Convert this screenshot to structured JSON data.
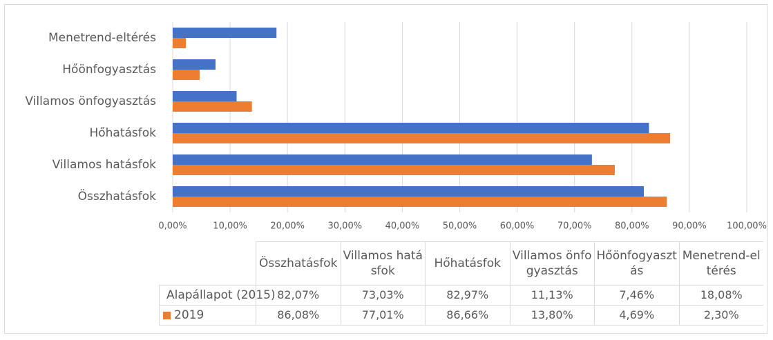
{
  "chart_data": {
    "type": "barh",
    "categories": [
      "Összhatásfok",
      "Villamos hatásfok",
      "Hőhatásfok",
      "Villamos önfogyasztás",
      "Hőönfogyasztás",
      "Menetrend-eltérés"
    ],
    "series": [
      {
        "name": "Alapállapot (2015)",
        "color": "#4472c4",
        "values": [
          82.07,
          73.03,
          82.97,
          11.13,
          7.46,
          18.08
        ],
        "value_labels": [
          "82,07%",
          "73,03%",
          "82,97%",
          "11,13%",
          "7,46%",
          "18,08%"
        ]
      },
      {
        "name": "2019",
        "color": "#ed7d31",
        "values": [
          86.08,
          77.01,
          86.66,
          13.8,
          4.69,
          2.3
        ],
        "value_labels": [
          "86,08%",
          "77,01%",
          "86,66%",
          "13,80%",
          "4,69%",
          "2,30%"
        ]
      }
    ],
    "xlim": [
      0,
      100
    ],
    "xticks": [
      {
        "value": 0,
        "label": "0,00%"
      },
      {
        "value": 10,
        "label": "10,00%"
      },
      {
        "value": 20,
        "label": "20,00%"
      },
      {
        "value": 30,
        "label": "30,00%"
      },
      {
        "value": 40,
        "label": "40,00%"
      },
      {
        "value": 50,
        "label": "50,00%"
      },
      {
        "value": 60,
        "label": "60,00%"
      },
      {
        "value": 70,
        "label": "70,00%"
      },
      {
        "value": 80,
        "label": "80,00%"
      },
      {
        "value": 90,
        "label": "90,00%"
      },
      {
        "value": 100,
        "label": "100,00%"
      }
    ],
    "grid": true,
    "data_table": true
  }
}
